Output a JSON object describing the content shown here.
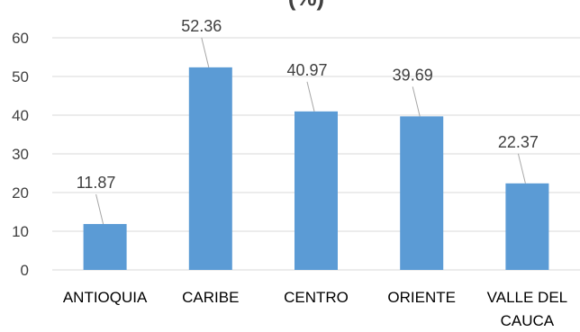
{
  "chart_data": {
    "type": "bar",
    "title_fragment": "(%)",
    "categories": [
      "ANTIOQUIA",
      "CARIBE",
      "CENTRO",
      "ORIENTE",
      "VALLE DEL CAUCA"
    ],
    "category_lines": [
      [
        "ANTIOQUIA"
      ],
      [
        "CARIBE"
      ],
      [
        "CENTRO"
      ],
      [
        "ORIENTE"
      ],
      [
        "VALLE DEL",
        "CAUCA"
      ]
    ],
    "values": [
      11.87,
      52.36,
      40.97,
      39.69,
      22.37
    ],
    "value_labels": [
      "11.87",
      "52.36",
      "40.97",
      "39.69",
      "22.37"
    ],
    "ylim": [
      0,
      60
    ],
    "yticks": [
      0,
      10,
      20,
      30,
      40,
      50,
      60
    ],
    "grid": true,
    "legend": "none",
    "bar_color": "#5B9BD5",
    "grid_color": "#D9D9D9",
    "xlabel": "",
    "ylabel": ""
  }
}
